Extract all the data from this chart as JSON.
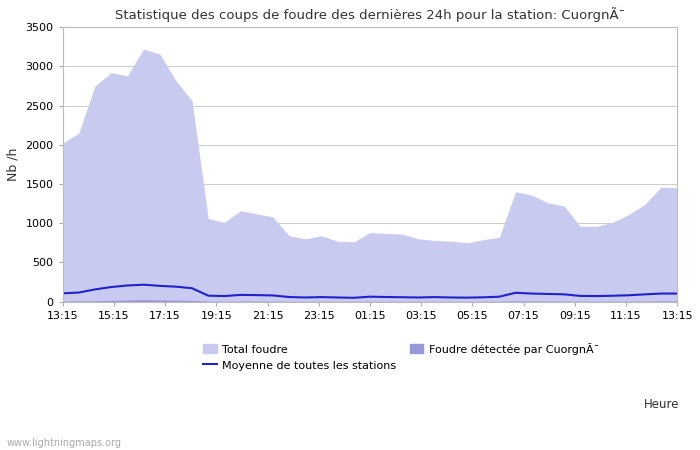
{
  "title": "Statistique des coups de foudre des dernières 24h pour la station: CuorgnÃ¯",
  "ylabel": "Nb /h",
  "xlabel": "Heure",
  "watermark": "www.lightningmaps.org",
  "ylim": [
    0,
    3500
  ],
  "yticks": [
    0,
    500,
    1000,
    1500,
    2000,
    2500,
    3000,
    3500
  ],
  "xtick_labels": [
    "13:15",
    "15:15",
    "17:15",
    "19:15",
    "21:15",
    "23:15",
    "01:15",
    "03:15",
    "05:15",
    "07:15",
    "09:15",
    "11:15",
    "13:15"
  ],
  "total_foudre_color": "#c8caf0",
  "local_foudre_color": "#9898d8",
  "moyenne_color": "#2222cc",
  "background_color": "#ffffff",
  "grid_color": "#cccccc",
  "legend_total": "Total foudre",
  "legend_moyenne": "Moyenne de toutes les stations",
  "legend_local": "Foudre détectée par CuorgnÃ¯",
  "total_foudre": [
    2020,
    2150,
    2750,
    2920,
    2880,
    3220,
    3160,
    2820,
    2560,
    1060,
    1010,
    1160,
    1120,
    1080,
    840,
    800,
    840,
    770,
    760,
    880,
    870,
    860,
    800,
    780,
    770,
    750,
    790,
    820,
    1400,
    1360,
    1260,
    1220,
    960,
    960,
    1010,
    1110,
    1240,
    1460,
    1450
  ],
  "moyenne_line": [
    105,
    115,
    155,
    185,
    205,
    215,
    200,
    190,
    170,
    75,
    70,
    85,
    82,
    78,
    58,
    52,
    57,
    52,
    48,
    62,
    58,
    55,
    52,
    57,
    52,
    50,
    54,
    62,
    112,
    102,
    97,
    92,
    72,
    70,
    74,
    80,
    92,
    102,
    102
  ],
  "local_foudre": [
    5,
    8,
    10,
    15,
    20,
    25,
    20,
    18,
    15,
    5,
    4,
    6,
    6,
    5,
    3,
    3,
    4,
    3,
    3,
    4,
    4,
    4,
    3,
    3,
    3,
    3,
    3,
    4,
    8,
    7,
    7,
    6,
    5,
    5,
    5,
    5,
    6,
    8,
    8
  ],
  "figwidth": 7.0,
  "figheight": 4.5,
  "dpi": 100
}
